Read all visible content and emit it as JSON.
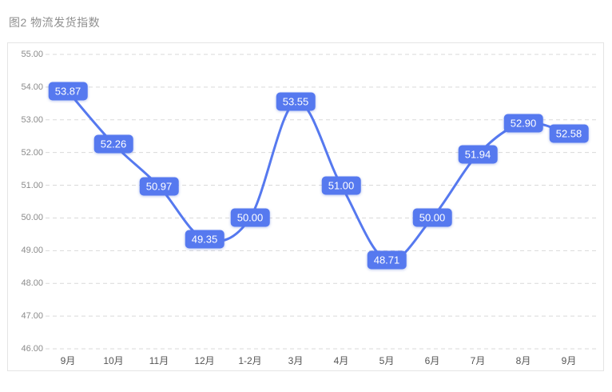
{
  "chart_data": {
    "type": "line",
    "title": "图2 物流发货指数",
    "categories": [
      "9月",
      "10月",
      "11月",
      "12月",
      "1-2月",
      "3月",
      "4月",
      "5月",
      "6月",
      "7月",
      "8月",
      "9月"
    ],
    "series": [
      {
        "name": "物流发货指数",
        "values": [
          53.87,
          52.26,
          50.97,
          49.35,
          50.0,
          53.55,
          51.0,
          48.71,
          50.0,
          51.94,
          52.9,
          52.58
        ],
        "values_display": [
          "53.87",
          "52.26",
          "50.97",
          "49.35",
          "50.00",
          "53.55",
          "51.00",
          "48.71",
          "50.00",
          "51.94",
          "52.90",
          "52.58"
        ]
      }
    ],
    "ylim": [
      46,
      55
    ],
    "ytick_values": [
      55,
      54,
      53,
      52,
      51,
      50,
      49,
      48,
      47,
      46
    ],
    "ytick_labels": [
      "55.00",
      "54.00",
      "53.00",
      "52.00",
      "51.00",
      "50.00",
      "49.00",
      "48.00",
      "47.00",
      "46.00"
    ],
    "grid": "horizontal-dashed",
    "legend": "none",
    "smooth": true,
    "line_color": "#5679ef",
    "label_bg": "#5679ef",
    "label_text_color": "#ffffff"
  }
}
